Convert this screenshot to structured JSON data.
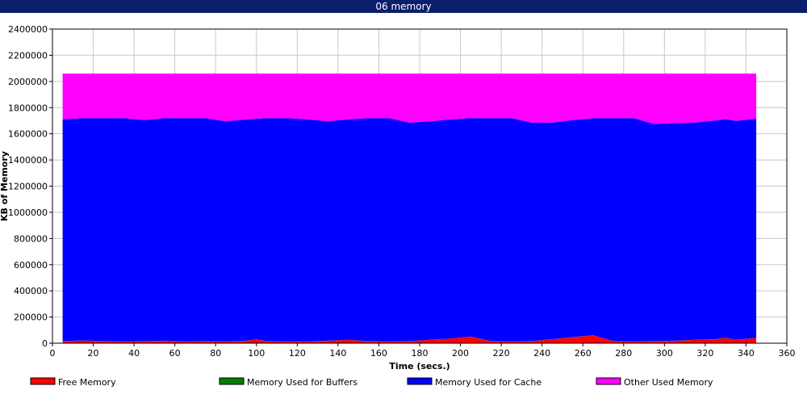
{
  "window": {
    "title": "06 memory"
  },
  "chart_data": {
    "type": "area",
    "stacked": true,
    "title": "06 memory",
    "xlabel": "Time (secs.)",
    "ylabel": "KB of Memory",
    "xlim": [
      0,
      360
    ],
    "ylim": [
      0,
      2400000
    ],
    "x_ticks": [
      0,
      20,
      40,
      60,
      80,
      100,
      120,
      140,
      160,
      180,
      200,
      220,
      240,
      260,
      280,
      300,
      320,
      340,
      360
    ],
    "y_ticks": [
      0,
      200000,
      400000,
      600000,
      800000,
      1000000,
      1200000,
      1400000,
      1600000,
      1800000,
      2000000,
      2200000,
      2400000
    ],
    "grid": true,
    "legend_position": "bottom",
    "x": [
      5,
      15,
      25,
      35,
      45,
      55,
      65,
      75,
      85,
      95,
      100,
      105,
      115,
      125,
      135,
      145,
      155,
      165,
      175,
      185,
      195,
      205,
      215,
      225,
      235,
      245,
      255,
      265,
      275,
      285,
      295,
      305,
      315,
      325,
      330,
      335,
      345
    ],
    "series": [
      {
        "name": "Free Memory",
        "color": "#ff0000",
        "values": [
          15000,
          20000,
          15000,
          12000,
          15000,
          18000,
          12000,
          15000,
          12000,
          18000,
          28000,
          15000,
          12000,
          12000,
          18000,
          25000,
          15000,
          12000,
          15000,
          25000,
          35000,
          50000,
          15000,
          12000,
          15000,
          30000,
          45000,
          60000,
          15000,
          12000,
          15000,
          18000,
          25000,
          30000,
          40000,
          25000,
          40000
        ]
      },
      {
        "name": "Memory Used for Buffers",
        "color": "#008000",
        "values": [
          1000,
          1000,
          1000,
          1000,
          1000,
          1000,
          1000,
          1000,
          1000,
          1000,
          1000,
          1000,
          1000,
          1000,
          1000,
          1000,
          1000,
          1000,
          1000,
          1000,
          1000,
          1000,
          1000,
          1000,
          1000,
          1000,
          1000,
          1000,
          1000,
          1000,
          1000,
          1000,
          1000,
          1000,
          1000,
          1000,
          1000
        ]
      },
      {
        "name": "Memory Used for Cache",
        "color": "#0000ff",
        "values": [
          1694000,
          1699000,
          1704000,
          1707000,
          1689000,
          1701000,
          1707000,
          1704000,
          1682000,
          1691000,
          1686000,
          1704000,
          1707000,
          1697000,
          1676000,
          1684000,
          1704000,
          1707000,
          1669000,
          1669000,
          1674000,
          1669000,
          1704000,
          1707000,
          1669000,
          1654000,
          1659000,
          1659000,
          1704000,
          1707000,
          1659000,
          1663000,
          1659000,
          1671000,
          1672000,
          1672000,
          1674000
        ]
      },
      {
        "name": "Other Used Memory",
        "color": "#ff00ff",
        "values": [
          350000,
          340000,
          340000,
          340000,
          355000,
          340000,
          340000,
          340000,
          365000,
          350000,
          345000,
          340000,
          340000,
          350000,
          365000,
          350000,
          340000,
          340000,
          375000,
          365000,
          350000,
          340000,
          340000,
          340000,
          375000,
          375000,
          355000,
          340000,
          340000,
          340000,
          385000,
          378000,
          375000,
          358000,
          347000,
          362000,
          345000
        ]
      }
    ]
  }
}
